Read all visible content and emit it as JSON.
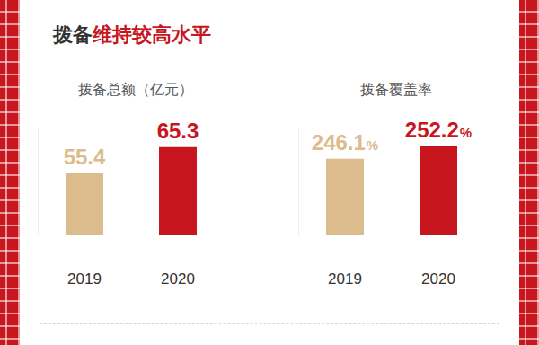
{
  "title": "拨备维持较高水平",
  "chart_data": [
    {
      "type": "bar",
      "title": "拨备总额（亿元）",
      "categories": [
        "2019",
        "2020"
      ],
      "values": [
        55.4,
        65.3
      ],
      "colors": [
        "#dcbb8c",
        "#c8161e"
      ],
      "ylim": [
        32,
        72
      ],
      "yticks": [
        32,
        72
      ],
      "grid": false,
      "tick_labels": "x",
      "data_labels": true
    },
    {
      "type": "bar",
      "title": "拨备覆盖率",
      "categories": [
        "2019",
        "2020"
      ],
      "values": [
        246.1,
        252.2
      ],
      "value_labels": [
        "246.1%",
        "252.2%"
      ],
      "colors": [
        "#dcbb8c",
        "#c8161e"
      ],
      "ylim": [
        210,
        260
      ],
      "yticks": [
        210,
        260
      ],
      "grid": false,
      "tick_labels": "x",
      "data_labels": true
    }
  ]
}
